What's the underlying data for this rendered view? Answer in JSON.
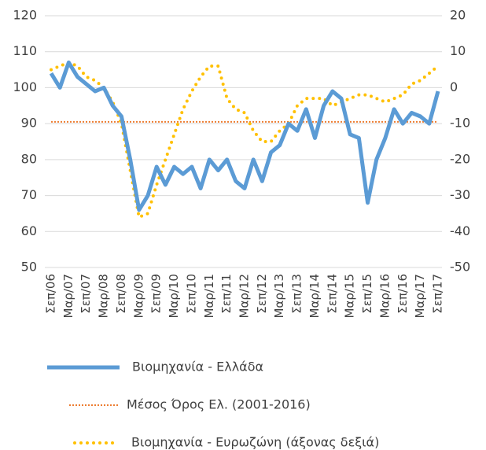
{
  "chart_data": {
    "type": "line",
    "categories": [
      "Σεπ/06",
      null,
      "Μαρ/07",
      null,
      "Σεπ/07",
      null,
      "Μαρ/08",
      null,
      "Σεπ/08",
      null,
      "Μαρ/09",
      null,
      "Σεπ/09",
      null,
      "Μαρ/10",
      null,
      "Σεπ/10",
      null,
      "Μαρ/11",
      null,
      "Σεπ/11",
      null,
      "Μαρ/12",
      null,
      "Σεπ/12",
      null,
      "Μαρ/13",
      null,
      "Σεπ/13",
      null,
      "Μαρ/14",
      null,
      "Σεπ/14",
      null,
      "Μαρ/15",
      null,
      "Σεπ/15",
      null,
      "Μαρ/16",
      null,
      "Σεπ/16",
      null,
      "Μαρ/17",
      null,
      "Σεπ/17"
    ],
    "series": [
      {
        "name": "Βιομηχανία  - Ελλάδα",
        "color": "#5b9bd5",
        "style": "solid",
        "values": [
          104,
          100,
          107,
          103,
          101,
          99,
          100,
          95,
          92,
          80,
          66,
          70,
          78,
          73,
          78,
          76,
          78,
          72,
          80,
          77,
          80,
          74,
          72,
          80,
          74,
          82,
          84,
          90,
          88,
          94,
          86,
          95,
          99,
          97,
          87,
          86,
          68,
          80,
          86,
          94,
          90,
          93,
          92,
          90,
          99
        ]
      },
      {
        "name": "Μέσος Όρος Ελ. (2001-2016)",
        "color": "#ed7d31",
        "style": "dotted",
        "values": [
          90.5,
          90.5,
          90.5,
          90.5,
          90.5,
          90.5,
          90.5,
          90.5,
          90.5,
          90.5,
          90.5,
          90.5,
          90.5,
          90.5,
          90.5,
          90.5,
          90.5,
          90.5,
          90.5,
          90.5,
          90.5,
          90.5,
          90.5,
          90.5,
          90.5,
          90.5,
          90.5,
          90.5,
          90.5,
          90.5,
          90.5,
          90.5,
          90.5,
          90.5,
          90.5,
          90.5,
          90.5,
          90.5,
          90.5,
          90.5,
          90.5,
          90.5,
          90.5,
          90.5,
          90.5
        ]
      },
      {
        "name": "Βιομηχανία - Ευρωζώνη (άξονας δεξιά)",
        "color": "#ffc000",
        "style": "dots",
        "axis": "y2",
        "values": [
          5,
          6,
          7,
          6,
          3,
          2,
          0,
          -4,
          -10,
          -23,
          -36,
          -35,
          -27,
          -20,
          -13,
          -6,
          -1,
          3,
          6,
          6,
          -3,
          -6,
          -7,
          -12,
          -15,
          -15,
          -12,
          -10,
          -5,
          -3,
          -3,
          -3,
          -5,
          -4,
          -3,
          -2,
          -2,
          -3,
          -4,
          -3,
          -2,
          1,
          2,
          4,
          6
        ]
      }
    ],
    "ylim": [
      50,
      120
    ],
    "yticks": [
      50,
      60,
      70,
      80,
      90,
      100,
      110,
      120
    ],
    "y2lim": [
      -50,
      20
    ],
    "y2ticks": [
      -50,
      -40,
      -30,
      -20,
      -10,
      0,
      10,
      20
    ],
    "grid": true
  }
}
